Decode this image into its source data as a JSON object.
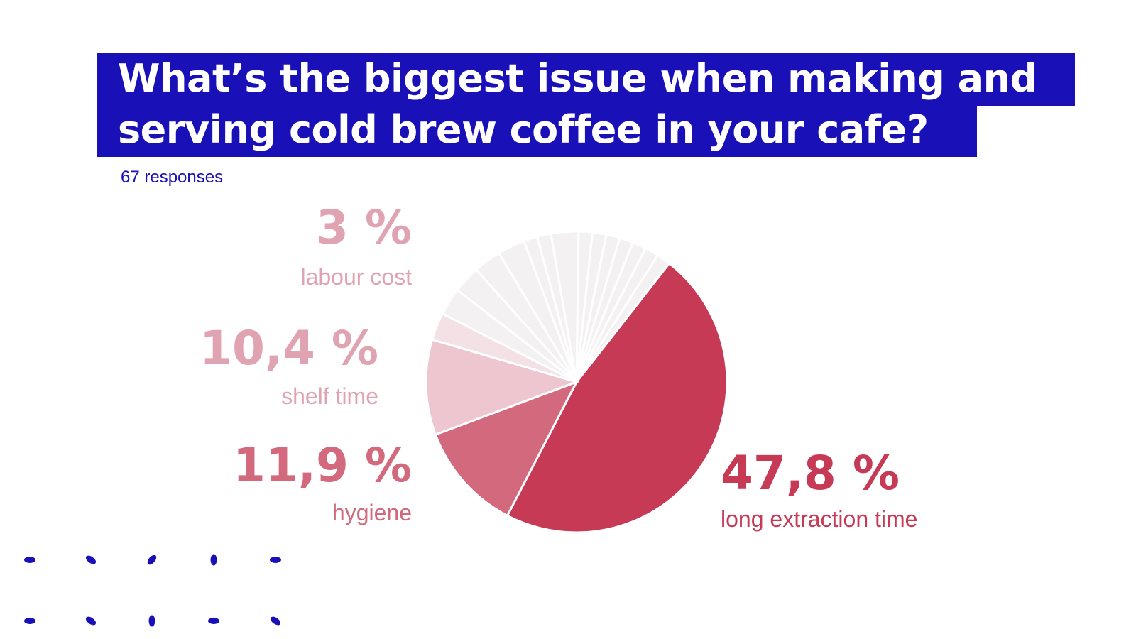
{
  "title_lines": [
    "What’s the biggest issue when making and",
    "serving cold brew coffee in your cafe?"
  ],
  "responses": "67 responses",
  "colors": {
    "accent": "#1a10b8",
    "long_extraction": "#c63a55",
    "hygiene": "#d2697d",
    "shelf_time": "#edc6cf",
    "labour_cost": "#f3e1e5",
    "others": "#f3f1f2",
    "label_light": "#e0a3b1"
  },
  "labels": {
    "labour_cost": {
      "pct": "3 %",
      "name": "labour cost"
    },
    "shelf_time": {
      "pct": "10,4 %",
      "name": "shelf time"
    },
    "hygiene": {
      "pct": "11,9 %",
      "name": "hygiene"
    },
    "long_extraction": {
      "pct": "47,8 %",
      "name": "long extraction time"
    }
  },
  "chart_data": {
    "type": "pie",
    "slices": [
      {
        "label": "long extraction time",
        "value": 47.8,
        "color": "#c63a55"
      },
      {
        "label": "hygiene",
        "value": 11.9,
        "color": "#d2697d"
      },
      {
        "label": "shelf time",
        "value": 10.4,
        "color": "#edc6cf"
      },
      {
        "label": "labour cost",
        "value": 3.0,
        "color": "#f3e1e5"
      },
      {
        "label": "",
        "value": 3.0,
        "color": "#f3f1f2"
      },
      {
        "label": "",
        "value": 3.0,
        "color": "#f3f1f2"
      },
      {
        "label": "",
        "value": 3.0,
        "color": "#f3f1f2"
      },
      {
        "label": "",
        "value": 3.0,
        "color": "#f3f1f2"
      },
      {
        "label": "",
        "value": 1.5,
        "color": "#f3f1f2"
      },
      {
        "label": "",
        "value": 1.5,
        "color": "#f3f1f2"
      },
      {
        "label": "",
        "value": 3.0,
        "color": "#f3f1f2"
      },
      {
        "label": "",
        "value": 1.5,
        "color": "#f3f1f2"
      },
      {
        "label": "",
        "value": 1.5,
        "color": "#f3f1f2"
      },
      {
        "label": "",
        "value": 1.5,
        "color": "#f3f1f2"
      },
      {
        "label": "",
        "value": 1.5,
        "color": "#f3f1f2"
      },
      {
        "label": "",
        "value": 1.5,
        "color": "#f3f1f2"
      },
      {
        "label": "",
        "value": 1.5,
        "color": "#f3f1f2"
      },
      {
        "label": "",
        "value": 1.5,
        "color": "#f3f1f2"
      }
    ],
    "start_angle_deg": 38,
    "direction": "clockwise"
  }
}
